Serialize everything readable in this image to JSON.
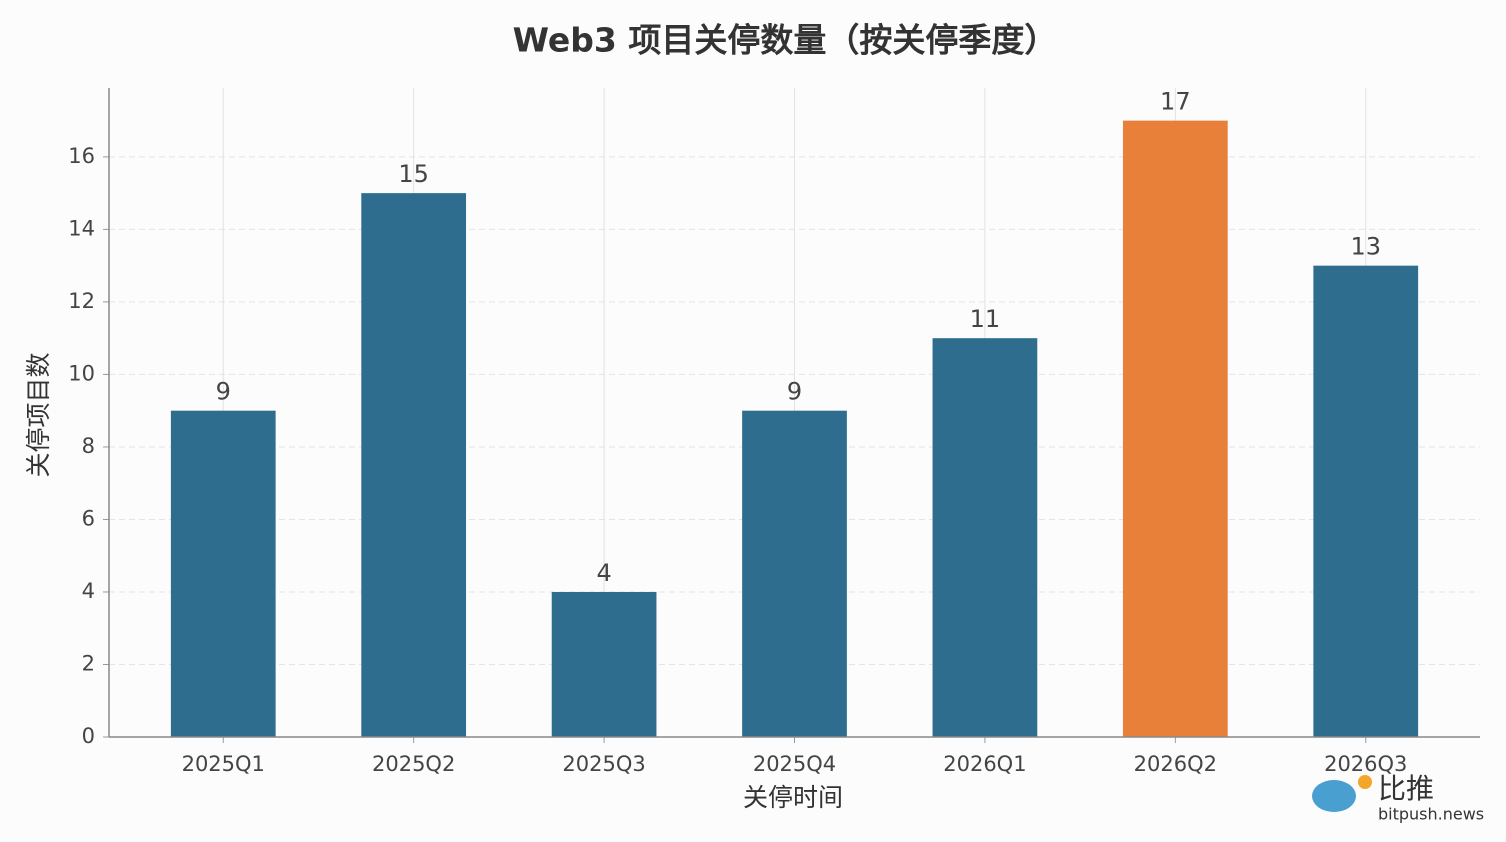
{
  "chart_data": {
    "type": "bar",
    "title": "Web3 项目关停数量（按关停季度）",
    "x_label": "关停时间",
    "y_label": "关停项目数",
    "categories": [
      "2025Q1",
      "2025Q2",
      "2025Q3",
      "2025Q4",
      "2026Q1",
      "2026Q2",
      "2026Q3"
    ],
    "values": [
      9,
      15,
      4,
      9,
      11,
      17,
      13
    ],
    "colors": [
      "#2e6d8e",
      "#2e6d8e",
      "#2e6d8e",
      "#2e6d8e",
      "#2e6d8e",
      "#e8803a",
      "#2e6d8e"
    ],
    "ylim": [
      0,
      17.9
    ],
    "yticks": [
      0,
      2,
      4,
      6,
      8,
      10,
      12,
      14,
      16
    ],
    "grid": true
  },
  "watermark": {
    "logo": "比推",
    "site": "bitpush.news"
  }
}
